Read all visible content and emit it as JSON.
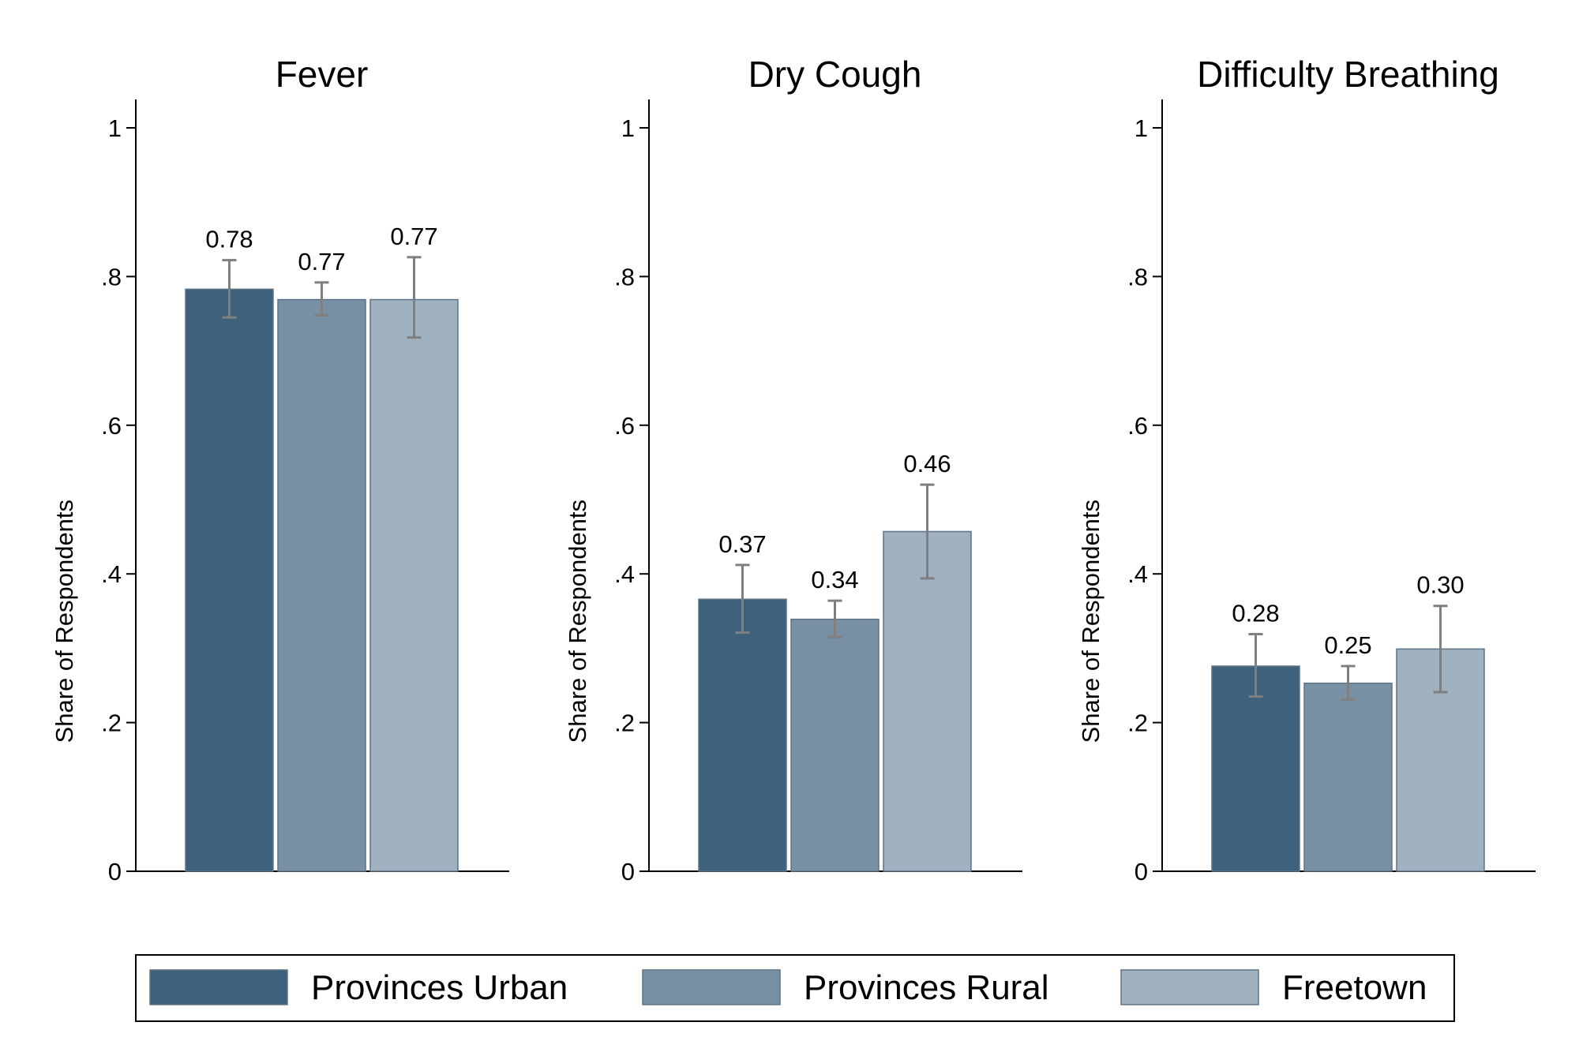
{
  "chart_data": [
    {
      "type": "bar",
      "title": "Fever",
      "ylabel": "Share of Respondents",
      "ylim": [
        0,
        1
      ],
      "yticks": [
        0,
        0.2,
        0.4,
        0.6,
        0.8,
        1
      ],
      "ytick_labels": [
        "0",
        ".2",
        ".4",
        ".6",
        ".8",
        "1"
      ],
      "categories": [
        "Provinces Urban",
        "Provinces Rural",
        "Freetown"
      ],
      "values": [
        0.783,
        0.769,
        0.769
      ],
      "value_labels": [
        "0.78",
        "0.77",
        "0.77"
      ],
      "ci_low": [
        0.745,
        0.748,
        0.718
      ],
      "ci_high": [
        0.822,
        0.792,
        0.826
      ]
    },
    {
      "type": "bar",
      "title": "Dry Cough",
      "ylabel": "Share of Respondents",
      "ylim": [
        0,
        1
      ],
      "yticks": [
        0,
        0.2,
        0.4,
        0.6,
        0.8,
        1
      ],
      "ytick_labels": [
        "0",
        ".2",
        ".4",
        ".6",
        ".8",
        "1"
      ],
      "categories": [
        "Provinces Urban",
        "Provinces Rural",
        "Freetown"
      ],
      "values": [
        0.366,
        0.339,
        0.457
      ],
      "value_labels": [
        "0.37",
        "0.34",
        "0.46"
      ],
      "ci_low": [
        0.321,
        0.315,
        0.394
      ],
      "ci_high": [
        0.412,
        0.364,
        0.52
      ]
    },
    {
      "type": "bar",
      "title": "Difficulty Breathing",
      "ylabel": "Share of Respondents",
      "ylim": [
        0,
        1
      ],
      "yticks": [
        0,
        0.2,
        0.4,
        0.6,
        0.8,
        1
      ],
      "ytick_labels": [
        "0",
        ".2",
        ".4",
        ".6",
        ".8",
        "1"
      ],
      "categories": [
        "Provinces Urban",
        "Provinces Rural",
        "Freetown"
      ],
      "values": [
        0.276,
        0.253,
        0.299
      ],
      "value_labels": [
        "0.28",
        "0.25",
        "0.30"
      ],
      "ci_low": [
        0.235,
        0.231,
        0.241
      ],
      "ci_high": [
        0.319,
        0.276,
        0.357
      ]
    }
  ],
  "legend": {
    "placement": "bottom",
    "items": [
      {
        "label": "Provinces Urban",
        "color": "#3e627c"
      },
      {
        "label": "Provinces Rural",
        "color": "#7890a3"
      },
      {
        "label": "Freetown",
        "color": "#a0b1bf"
      }
    ]
  },
  "colors": {
    "bar_outline": "#5f7385",
    "error_bar": "#7f7f7f",
    "axis": "#000000"
  }
}
